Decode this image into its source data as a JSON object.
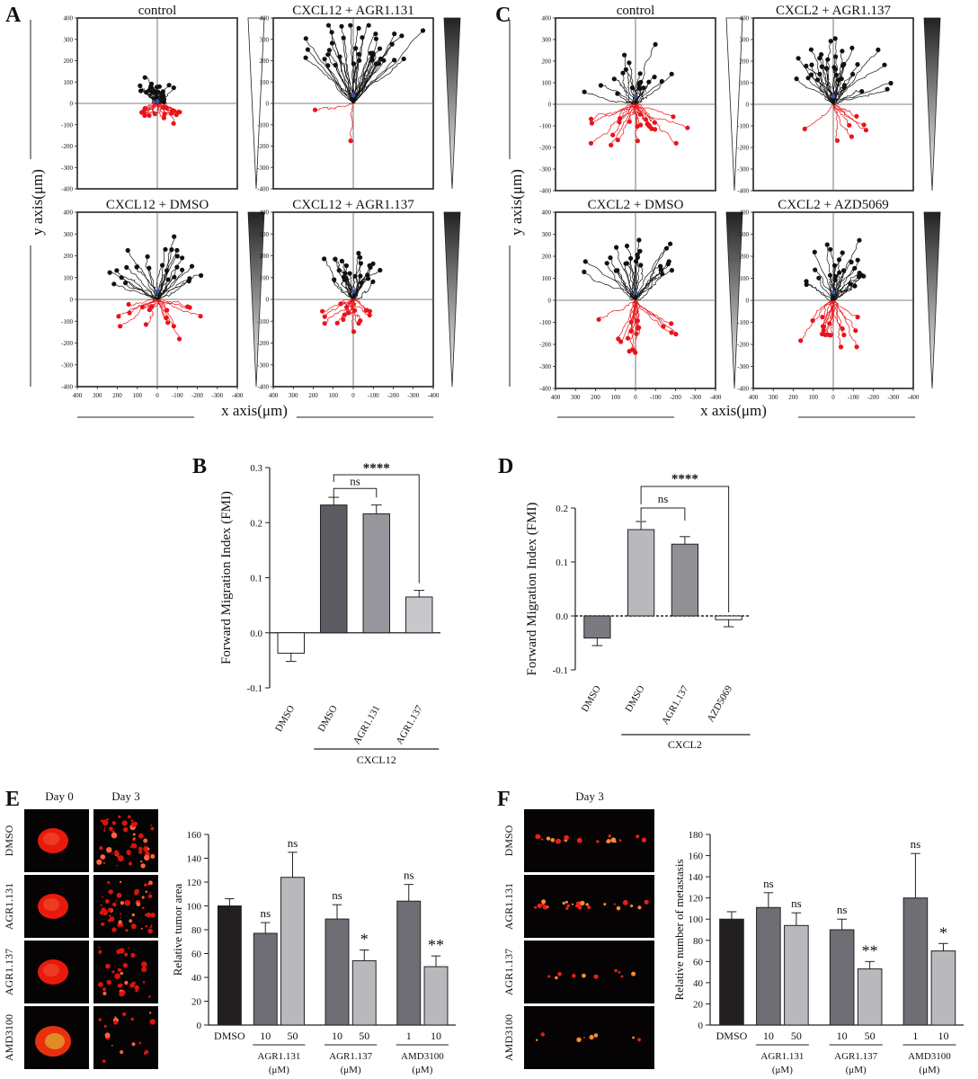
{
  "panels": {
    "A": "A",
    "B": "B",
    "C": "C",
    "D": "D",
    "E": "E",
    "F": "F"
  },
  "common": {
    "x_axis_label": "x axis(μm)",
    "y_axis_label": "y axis(μm)",
    "y_ticks": [
      "400",
      "300",
      "200",
      "100",
      "0",
      "-100",
      "-200",
      "-300",
      "-400"
    ],
    "x_ticks": [
      "400",
      "300",
      "200",
      "100",
      "0",
      "-100",
      "-200",
      "-300",
      "-400"
    ]
  },
  "track_plots": {
    "A": [
      {
        "title": "control",
        "gradient": "none"
      },
      {
        "title": "CXCL12 + AGR1.131",
        "gradient": "dark"
      },
      {
        "title": "CXCL12 + DMSO",
        "gradient": "dark"
      },
      {
        "title": "CXCL12 + AGR1.137",
        "gradient": "dark"
      }
    ],
    "C": [
      {
        "title": "control",
        "gradient": "none"
      },
      {
        "title": "CXCL2 + AGR1.137",
        "gradient": "dark"
      },
      {
        "title": "CXCL2 + DMSO",
        "gradient": "dark"
      },
      {
        "title": "CXCL2 + AZD5069",
        "gradient": "dark"
      }
    ]
  },
  "chart_data": [
    {
      "panel": "B",
      "type": "bar",
      "ylabel": "Forward Migration Index (FMI)",
      "ylim": [
        -0.1,
        0.3
      ],
      "y_ticks": [
        "0.3",
        "0.2",
        "0.1",
        "0.0",
        "-0.1"
      ],
      "categories": [
        "DMSO",
        "DMSO",
        "AGR1.131",
        "AGR1.137"
      ],
      "values": [
        -0.037,
        0.232,
        0.216,
        0.065
      ],
      "errors": [
        0.015,
        0.014,
        0.016,
        0.012
      ],
      "colors": [
        "#ffffff",
        "#5c5c62",
        "#96969c",
        "#c8c8cc"
      ],
      "group_label": "CXCL12",
      "significance": [
        {
          "label": "ns"
        },
        {
          "label": "****"
        }
      ]
    },
    {
      "panel": "D",
      "type": "bar",
      "ylabel": "Forward Migration Index (FMI)",
      "ylim": [
        -0.1,
        0.2
      ],
      "y_ticks": [
        "0.2",
        "0.1",
        "0.0",
        "-0.1"
      ],
      "categories": [
        "DMSO",
        "DMSO",
        "AGR1.137",
        "AZD5069"
      ],
      "values": [
        -0.041,
        0.16,
        0.133,
        -0.007
      ],
      "errors": [
        0.014,
        0.015,
        0.014,
        0.013
      ],
      "colors": [
        "#7a7a80",
        "#b9b9bd",
        "#909095",
        "#ffffff"
      ],
      "group_label": "CXCL2",
      "significance": [
        {
          "label": "ns"
        },
        {
          "label": "****"
        }
      ]
    },
    {
      "panel": "E",
      "type": "bar",
      "ylabel": "Relative tumor area",
      "ylim": [
        0,
        160
      ],
      "y_ticks": [
        "160",
        "140",
        "120",
        "100",
        "80",
        "60",
        "40",
        "20",
        "0"
      ],
      "categories": [
        "DMSO",
        "10",
        "50",
        "10",
        "50",
        "1",
        "10"
      ],
      "values": [
        100,
        77,
        124,
        89,
        54,
        104,
        49
      ],
      "errors": [
        6,
        9,
        21,
        12,
        9,
        14,
        9
      ],
      "colors": [
        "#231f20",
        "#6e6e74",
        "#b9b9bd",
        "#6e6e74",
        "#b9b9bd",
        "#6e6e74",
        "#b9b9bd"
      ],
      "annotations": [
        "",
        "ns",
        "ns",
        "ns",
        "*",
        "ns",
        "**"
      ],
      "groups": [
        {
          "label": "AGR1.131",
          "unit": "(μM)"
        },
        {
          "label": "AGR1.137",
          "unit": "(μM)"
        },
        {
          "label": "AMD3100",
          "unit": "(μM)"
        }
      ],
      "images": {
        "col_labels": [
          "Day 0",
          "Day 3"
        ],
        "row_labels": [
          "DMSO",
          "AGR1.131",
          "AGR1.137",
          "AMD3100"
        ]
      }
    },
    {
      "panel": "F",
      "type": "bar",
      "ylabel": "Relative number of metastasis",
      "ylim": [
        0,
        180
      ],
      "y_ticks": [
        "180",
        "160",
        "140",
        "120",
        "100",
        "80",
        "60",
        "40",
        "20",
        "0"
      ],
      "categories": [
        "DMSO",
        "10",
        "50",
        "10",
        "50",
        "1",
        "10"
      ],
      "values": [
        100,
        111,
        94,
        90,
        53,
        120,
        70
      ],
      "errors": [
        7,
        14,
        12,
        10,
        7,
        42,
        7
      ],
      "colors": [
        "#231f20",
        "#6e6e74",
        "#b9b9bd",
        "#6e6e74",
        "#b9b9bd",
        "#6e6e74",
        "#b9b9bd"
      ],
      "annotations": [
        "",
        "ns",
        "ns",
        "ns",
        "**",
        "ns",
        "*"
      ],
      "groups": [
        {
          "label": "AGR1.131",
          "unit": "(μM)"
        },
        {
          "label": "AGR1.137",
          "unit": "(μM)"
        },
        {
          "label": "AMD3100",
          "unit": "(μM)"
        }
      ],
      "images": {
        "col_labels": [
          "Day 3"
        ],
        "row_labels": [
          "DMSO",
          "AGR1.131",
          "AGR1.137",
          "AMD3100"
        ]
      }
    }
  ]
}
